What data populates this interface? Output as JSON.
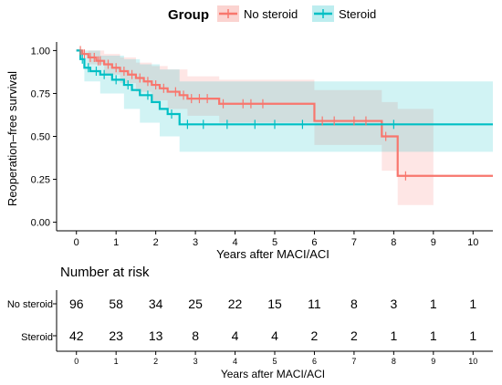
{
  "legend": {
    "title": "Group",
    "items": [
      {
        "label": "No steroid",
        "color": "#F8766D",
        "band": "#FBD3D0"
      },
      {
        "label": "Steroid",
        "color": "#00BFC4",
        "band": "#BDEDEF"
      }
    ]
  },
  "chart_data": {
    "type": "line",
    "subtype": "kaplan-meier step curves with confidence bands and censor marks",
    "ylabel": "Reoperation–free survival",
    "xlabel": "Years after MACI/ACI",
    "xlim": [
      -0.5,
      10.5
    ],
    "ylim": [
      -0.05,
      1.05
    ],
    "x_ticks": [
      0,
      1,
      2,
      3,
      4,
      5,
      6,
      7,
      8,
      9,
      10
    ],
    "y_ticks": [
      0,
      0.25,
      0.5,
      0.75,
      1
    ],
    "y_tick_labels": [
      "0.00",
      "0.25",
      "0.50",
      "0.75",
      "1.00"
    ],
    "grid": false,
    "legend_position": "top",
    "series": [
      {
        "name": "No steroid",
        "color": "#F8766D",
        "band_color": "#FBD3D0",
        "steps": [
          [
            0,
            1.0
          ],
          [
            0.15,
            0.98
          ],
          [
            0.3,
            0.96
          ],
          [
            0.5,
            0.94
          ],
          [
            0.7,
            0.92
          ],
          [
            0.9,
            0.9
          ],
          [
            1.1,
            0.88
          ],
          [
            1.3,
            0.86
          ],
          [
            1.5,
            0.84
          ],
          [
            1.7,
            0.82
          ],
          [
            1.9,
            0.8
          ],
          [
            2.1,
            0.78
          ],
          [
            2.3,
            0.76
          ],
          [
            2.6,
            0.74
          ],
          [
            2.8,
            0.72
          ],
          [
            3.6,
            0.69
          ],
          [
            6.0,
            0.59
          ],
          [
            7.7,
            0.5
          ],
          [
            8.1,
            0.27
          ],
          [
            10.5,
            0.27
          ]
        ],
        "lower": [
          [
            0,
            1.0
          ],
          [
            0.3,
            0.92
          ],
          [
            0.7,
            0.86
          ],
          [
            1.1,
            0.81
          ],
          [
            1.5,
            0.76
          ],
          [
            1.9,
            0.71
          ],
          [
            2.3,
            0.66
          ],
          [
            2.8,
            0.62
          ],
          [
            3.6,
            0.58
          ],
          [
            6.0,
            0.45
          ],
          [
            7.7,
            0.3
          ],
          [
            8.1,
            0.1
          ],
          [
            9.0,
            0.1
          ]
        ],
        "upper": [
          [
            0,
            1.0
          ],
          [
            0.3,
            1.0
          ],
          [
            0.7,
            0.98
          ],
          [
            1.1,
            0.96
          ],
          [
            1.5,
            0.93
          ],
          [
            1.9,
            0.91
          ],
          [
            2.3,
            0.89
          ],
          [
            2.8,
            0.85
          ],
          [
            3.6,
            0.83
          ],
          [
            6.0,
            0.77
          ],
          [
            7.7,
            0.7
          ],
          [
            8.1,
            0.66
          ],
          [
            9.0,
            0.66
          ]
        ],
        "censor": [
          0.1,
          0.2,
          0.35,
          0.45,
          0.55,
          0.6,
          0.8,
          1.0,
          1.2,
          1.4,
          1.6,
          1.8,
          2.0,
          2.2,
          2.5,
          2.7,
          2.9,
          3.1,
          3.3,
          3.7,
          4.2,
          4.4,
          4.7,
          6.2,
          6.5,
          7.0,
          7.3,
          7.8,
          8.3
        ]
      },
      {
        "name": "Steroid",
        "color": "#00BFC4",
        "band_color": "#BDEDEF",
        "steps": [
          [
            0,
            1.0
          ],
          [
            0.1,
            0.95
          ],
          [
            0.2,
            0.9
          ],
          [
            0.35,
            0.88
          ],
          [
            0.6,
            0.86
          ],
          [
            0.9,
            0.83
          ],
          [
            1.2,
            0.8
          ],
          [
            1.4,
            0.77
          ],
          [
            1.6,
            0.74
          ],
          [
            1.9,
            0.7
          ],
          [
            2.1,
            0.66
          ],
          [
            2.3,
            0.63
          ],
          [
            2.6,
            0.57
          ],
          [
            10.5,
            0.57
          ]
        ],
        "lower": [
          [
            0,
            1.0
          ],
          [
            0.2,
            0.82
          ],
          [
            0.6,
            0.75
          ],
          [
            1.2,
            0.66
          ],
          [
            1.6,
            0.58
          ],
          [
            2.1,
            0.5
          ],
          [
            2.6,
            0.41
          ],
          [
            10.5,
            0.41
          ]
        ],
        "upper": [
          [
            0,
            1.0
          ],
          [
            0.2,
            1.0
          ],
          [
            0.6,
            0.97
          ],
          [
            1.2,
            0.95
          ],
          [
            1.6,
            0.92
          ],
          [
            2.1,
            0.89
          ],
          [
            2.6,
            0.82
          ],
          [
            10.5,
            0.82
          ]
        ],
        "censor": [
          0.15,
          0.3,
          0.5,
          0.7,
          1.0,
          1.3,
          1.8,
          2.4,
          2.8,
          3.2,
          3.8,
          4.5,
          5.0,
          5.7,
          8.0
        ]
      }
    ]
  },
  "risk_table": {
    "title": "Number at risk",
    "xlabel": "Years after MACI/ACI",
    "x_ticks": [
      0,
      1,
      2,
      3,
      4,
      5,
      6,
      7,
      8,
      9,
      10
    ],
    "rows": [
      {
        "label": "No steroid",
        "values": [
          "96",
          "58",
          "34",
          "25",
          "22",
          "15",
          "11",
          "8",
          "3",
          "1",
          "1"
        ]
      },
      {
        "label": "Steroid",
        "values": [
          "42",
          "23",
          "13",
          "8",
          "4",
          "4",
          "2",
          "2",
          "1",
          "1",
          "1"
        ]
      }
    ]
  }
}
